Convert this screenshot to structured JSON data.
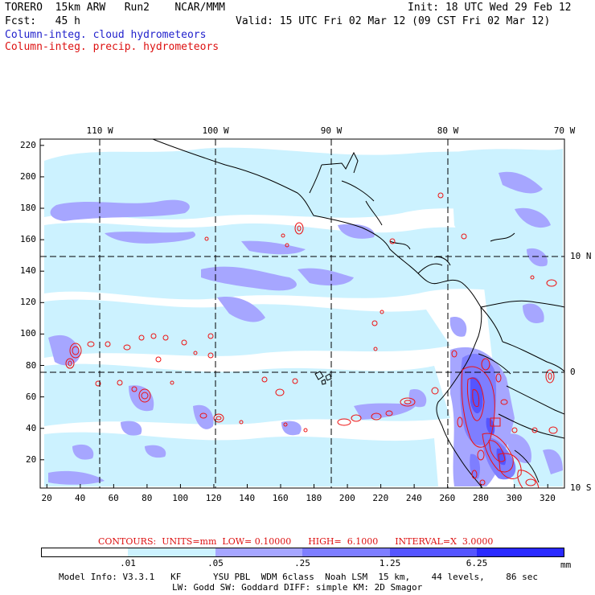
{
  "header": {
    "model": "TORERO  15km ARW   Run2    NCAR/MMM",
    "init": "Init: 18 UTC Wed 29 Feb 12",
    "fcst": "Fcst:   45 h",
    "valid": "Valid: 15 UTC Fri 02 Mar 12 (09 CST Fri 02 Mar 12)",
    "field_cloud": "Column-integ. cloud hydrometeors",
    "field_precip": "Column-integ. precip. hydrometeors"
  },
  "colors": {
    "cloud_label": "#2222cc",
    "precip_label": "#dd1111",
    "fill_levels": [
      "#ffffff",
      "#ccf2ff",
      "#a6a6ff",
      "#7e7eff",
      "#5555ff",
      "#2a2aff"
    ],
    "contour": "#ee1111"
  },
  "axes": {
    "x_ticks": [
      "20",
      "40",
      "60",
      "80",
      "100",
      "120",
      "140",
      "160",
      "180",
      "200",
      "220",
      "240",
      "260",
      "280",
      "300",
      "320"
    ],
    "y_ticks": [
      "20",
      "40",
      "60",
      "80",
      "100",
      "120",
      "140",
      "160",
      "180",
      "200",
      "220"
    ],
    "lon_labels": [
      "110 W",
      "100 W",
      "90 W",
      "80 W",
      "70 W"
    ],
    "lat_labels": [
      "10 N",
      "0",
      "10 S"
    ]
  },
  "contour_info": {
    "text": "CONTOURS:  UNITS=mm  LOW= 0.10000      HIGH=  6.1000      INTERVAL=X  3.0000"
  },
  "colorbar": {
    "ticks": [
      ".01",
      ".05",
      ".25",
      "1.25",
      "6.25"
    ],
    "unit": "mm"
  },
  "footer": {
    "line1": "Model Info: V3.3.1   KF      YSU PBL  WDM 6class  Noah LSM  15 km,    44 levels,    86 sec",
    "line2": "LW: Godd SW: Goddard DIFF: simple KM: 2D Smagor"
  }
}
